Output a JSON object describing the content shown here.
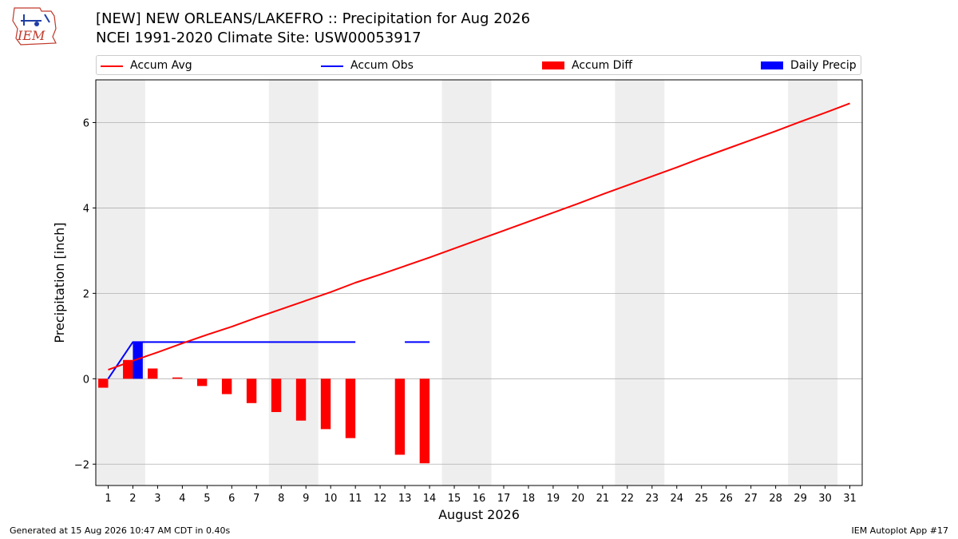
{
  "logo": {
    "text": "IEM"
  },
  "title_line1": "[NEW] NEW ORLEANS/LAKEFRO :: Precipitation for Aug 2026",
  "title_line2": "NCEI 1991-2020 Climate Site: USW00053917",
  "footer": {
    "left": "Generated at 15 Aug 2026 10:47 AM CDT in 0.40s",
    "right": "IEM Autoplot App #17"
  },
  "colors": {
    "accum_avg": "#ff0000",
    "accum_obs": "#0000ff",
    "accum_diff": "#ff0000",
    "daily_precip": "#0000ff",
    "weekend_shade": "#eeeeee",
    "grid": "#b0b0b0"
  },
  "chart_data": {
    "type": "bar",
    "xlabel": "August 2026",
    "ylabel": "Precipitation [inch]",
    "xlim": [
      0.5,
      31.5
    ],
    "ylim": [
      -2.5,
      7.0
    ],
    "yticks": [
      -2,
      0,
      2,
      4,
      6
    ],
    "ytick_labels": [
      "−2",
      "0",
      "2",
      "4",
      "6"
    ],
    "xticks": [
      1,
      2,
      3,
      4,
      5,
      6,
      7,
      8,
      9,
      10,
      11,
      12,
      13,
      14,
      15,
      16,
      17,
      18,
      19,
      20,
      21,
      22,
      23,
      24,
      25,
      26,
      27,
      28,
      29,
      30,
      31
    ],
    "grid": "horizontal",
    "legend_position": "top",
    "legend": [
      {
        "key": "accum_avg",
        "label": "Accum Avg",
        "kind": "line"
      },
      {
        "key": "accum_obs",
        "label": "Accum Obs",
        "kind": "line"
      },
      {
        "key": "accum_diff",
        "label": "Accum Diff",
        "kind": "bar"
      },
      {
        "key": "daily_precip",
        "label": "Daily Precip",
        "kind": "bar"
      }
    ],
    "weekend_shading": [
      [
        0.5,
        2.5
      ],
      [
        7.5,
        9.5
      ],
      [
        14.5,
        16.5
      ],
      [
        21.5,
        23.5
      ],
      [
        28.5,
        30.5
      ]
    ],
    "series": [
      {
        "name": "Accum Avg",
        "type": "line",
        "x": [
          1,
          2,
          3,
          4,
          5,
          6,
          7,
          8,
          9,
          10,
          11,
          12,
          13,
          14,
          15,
          16,
          17,
          18,
          19,
          20,
          21,
          22,
          23,
          24,
          25,
          26,
          27,
          28,
          29,
          30,
          31
        ],
        "values": [
          0.21,
          0.42,
          0.62,
          0.83,
          1.03,
          1.22,
          1.43,
          1.63,
          1.83,
          2.03,
          2.25,
          2.44,
          2.64,
          2.84,
          3.05,
          3.26,
          3.47,
          3.68,
          3.89,
          4.1,
          4.32,
          4.53,
          4.74,
          4.95,
          5.17,
          5.38,
          5.59,
          5.8,
          6.02,
          6.23,
          6.45
        ]
      },
      {
        "name": "Accum Obs",
        "type": "line",
        "x": [
          1,
          2,
          3,
          4,
          5,
          6,
          7,
          8,
          9,
          10,
          11,
          12,
          13,
          14
        ],
        "values": [
          0.0,
          0.86,
          0.86,
          0.86,
          0.86,
          0.86,
          0.86,
          0.86,
          0.86,
          0.86,
          0.86,
          null,
          0.86,
          0.86
        ]
      },
      {
        "name": "Accum Diff",
        "type": "bar",
        "x": [
          1,
          2,
          3,
          4,
          5,
          6,
          7,
          8,
          9,
          10,
          11,
          13,
          14
        ],
        "values": [
          -0.21,
          0.44,
          0.24,
          0.03,
          -0.17,
          -0.36,
          -0.57,
          -0.78,
          -0.98,
          -1.18,
          -1.39,
          -1.78,
          -1.98
        ]
      },
      {
        "name": "Daily Precip",
        "type": "bar",
        "x": [
          2
        ],
        "values": [
          0.86
        ]
      }
    ]
  }
}
